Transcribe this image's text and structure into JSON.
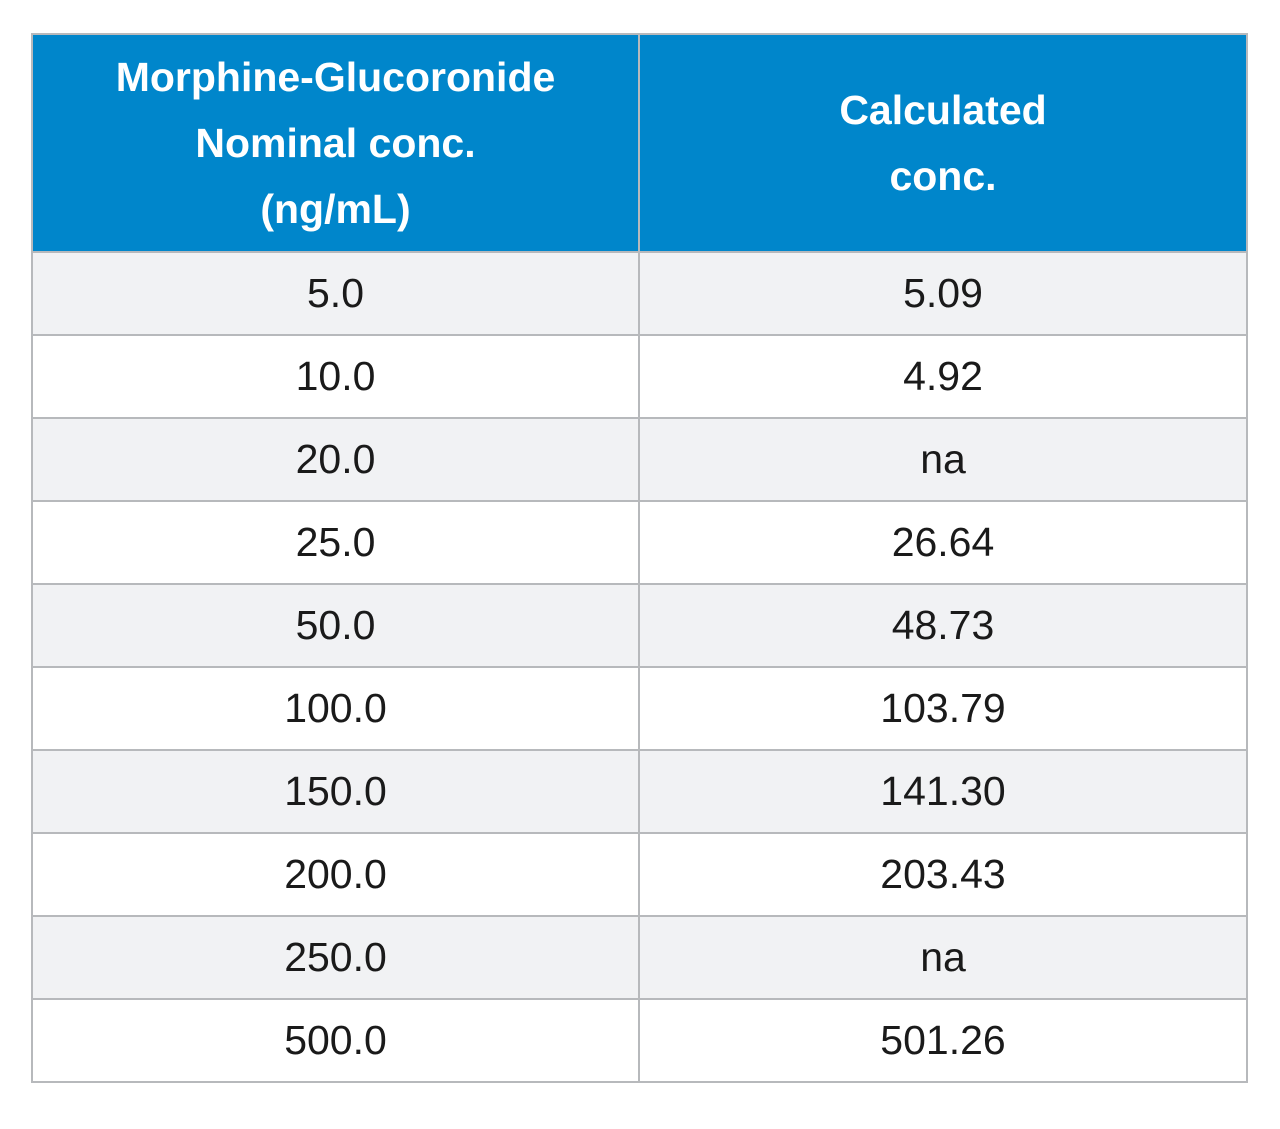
{
  "chart_data": {
    "type": "table",
    "columns": [
      {
        "lines": [
          "Morphine-Glucoronide",
          "Nominal conc.",
          "(ng/mL)"
        ]
      },
      {
        "lines": [
          "Calculated",
          "conc."
        ]
      }
    ],
    "rows": [
      [
        "5.0",
        "5.09"
      ],
      [
        "10.0",
        "4.92"
      ],
      [
        "20.0",
        "na"
      ],
      [
        "25.0",
        "26.64"
      ],
      [
        "50.0",
        "48.73"
      ],
      [
        "100.0",
        "103.79"
      ],
      [
        "150.0",
        "141.30"
      ],
      [
        "200.0",
        "203.43"
      ],
      [
        "250.0",
        "na"
      ],
      [
        "500.0",
        "501.26"
      ]
    ]
  },
  "colors": {
    "header_background": "#0086cb",
    "header_text": "#ffffff",
    "stripe_background": "#f1f2f4",
    "border": "#b7b9bc"
  }
}
